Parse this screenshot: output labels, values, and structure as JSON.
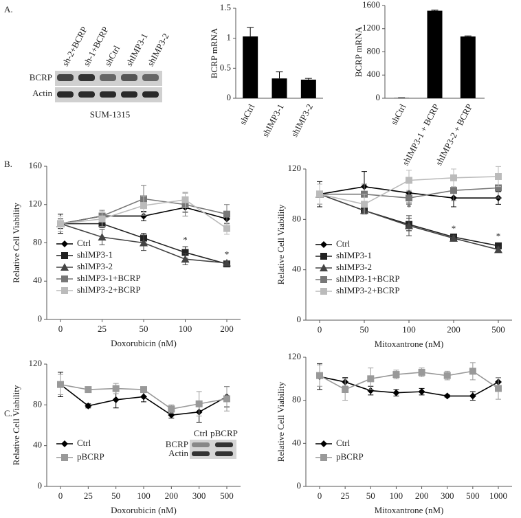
{
  "panel_labels": [
    "A.",
    "B.",
    "C."
  ],
  "blot_a": {
    "lanes": [
      "sh-2+BCRP",
      "sh-1+BCRP",
      "shCtrl",
      "shIMP3-1",
      "shIMP3-2"
    ],
    "rows": [
      "BCRP",
      "Actin"
    ],
    "cell_line": "SUM-1315"
  },
  "blot_c": {
    "lanes": [
      "Ctrl",
      "pBCRP"
    ],
    "rows": [
      "BCRP",
      "Actin"
    ]
  },
  "chart_data": [
    {
      "type": "bar",
      "ylabel": "BCRP mRNA",
      "categories": [
        "shCtrl",
        "shIMP3-1",
        "shIMP3-2"
      ],
      "values": [
        1.03,
        0.33,
        0.31
      ],
      "errors": [
        0.15,
        0.11,
        0.02
      ],
      "color": "#000000",
      "ylim": [
        0,
        1.5
      ],
      "yticks": [
        0,
        0.5,
        1,
        1.5
      ]
    },
    {
      "type": "bar",
      "ylabel": "BCRP mRNA",
      "categories": [
        "shCtrl",
        "shIMP3-1 + BCRP",
        "shIMP3-2 + BCRP"
      ],
      "values": [
        5,
        1510,
        1065
      ],
      "errors": [
        3,
        10,
        10
      ],
      "color": "#000000",
      "ylim": [
        0,
        1600
      ],
      "yticks": [
        0,
        400,
        800,
        1200,
        1600
      ]
    },
    {
      "type": "line",
      "ylabel": "Relative Cell Viability",
      "xlabel": "Doxorubicin (nM)",
      "categories": [
        "0",
        "25",
        "50",
        "100",
        "200"
      ],
      "ylim": [
        0,
        160
      ],
      "yticks": [
        0,
        40,
        80,
        120,
        160
      ],
      "legend": "lower left",
      "series": [
        {
          "name": "Ctrl",
          "color": "#000000",
          "marker": "diamond",
          "values": [
            100,
            108,
            108,
            117,
            105
          ],
          "errors": [
            10,
            5,
            5,
            5,
            5
          ]
        },
        {
          "name": "shIMP3-1",
          "color": "#222222",
          "marker": "square",
          "values": [
            100,
            100,
            85,
            70,
            58
          ],
          "errors": [
            5,
            4,
            5,
            6,
            2
          ]
        },
        {
          "name": "shIMP3-2",
          "color": "#444444",
          "marker": "triangle",
          "values": [
            100,
            86,
            80,
            63,
            59
          ],
          "errors": [
            5,
            8,
            8,
            6,
            2
          ]
        },
        {
          "name": "shIMP3-1+BCRP",
          "color": "#777777",
          "marker": "square",
          "values": [
            100,
            108,
            126,
            120,
            110
          ],
          "errors": [
            8,
            6,
            14,
            12,
            10
          ]
        },
        {
          "name": "shIMP3-2+BCRP",
          "color": "#bbbbbb",
          "marker": "square",
          "values": [
            100,
            105,
            119,
            125,
            95
          ],
          "errors": [
            8,
            8,
            10,
            8,
            6
          ]
        }
      ],
      "annotations": [
        {
          "text": "*",
          "x": "100",
          "y": 82
        },
        {
          "text": "*",
          "x": "200",
          "y": 67
        }
      ]
    },
    {
      "type": "line",
      "ylabel": "Relative Cell Viability",
      "xlabel": "Mitoxantrone (nM)",
      "categories": [
        "0",
        "50",
        "100",
        "200",
        "500"
      ],
      "ylim": [
        0,
        120
      ],
      "yticks": [
        0,
        40,
        80,
        120
      ],
      "legend": "lower left",
      "series": [
        {
          "name": "Ctrl",
          "color": "#000000",
          "marker": "diamond",
          "values": [
            100,
            106,
            101,
            97,
            97
          ],
          "errors": [
            10,
            12,
            8,
            7,
            5
          ]
        },
        {
          "name": "shIMP3-1",
          "color": "#222222",
          "marker": "square",
          "values": [
            100,
            87,
            76,
            66,
            59
          ],
          "errors": [
            8,
            2,
            5,
            2,
            2
          ]
        },
        {
          "name": "shIMP3-2",
          "color": "#444444",
          "marker": "triangle",
          "values": [
            100,
            87,
            75,
            65,
            56
          ],
          "errors": [
            8,
            2,
            8,
            2,
            2
          ]
        },
        {
          "name": "shIMP3-1+BCRP",
          "color": "#777777",
          "marker": "square",
          "values": [
            100,
            100,
            97,
            103,
            105
          ],
          "errors": [
            8,
            8,
            5,
            8,
            8
          ]
        },
        {
          "name": "shIMP3-2+BCRP",
          "color": "#bbbbbb",
          "marker": "square",
          "values": [
            100,
            92,
            111,
            113,
            114
          ],
          "errors": [
            8,
            8,
            8,
            7,
            8
          ]
        }
      ],
      "annotations": [
        {
          "text": "*",
          "x": "100",
          "y": 89
        },
        {
          "text": "*",
          "x": "200",
          "y": 72
        },
        {
          "text": "*",
          "x": "500",
          "y": 66
        }
      ]
    },
    {
      "type": "line",
      "ylabel": "Relative Cell Viability",
      "xlabel": "Doxorubicin (nM)",
      "categories": [
        "0",
        "25",
        "50",
        "100",
        "200",
        "300",
        "500"
      ],
      "ylim": [
        0,
        120
      ],
      "yticks": [
        0,
        40,
        80,
        120
      ],
      "legend": "lower left",
      "series": [
        {
          "name": "Ctrl",
          "color": "#000000",
          "marker": "diamond",
          "values": [
            100,
            79,
            85,
            88,
            70,
            73,
            88
          ],
          "errors": [
            12,
            2,
            8,
            5,
            3,
            10,
            10
          ]
        },
        {
          "name": "pBCRP",
          "color": "#999999",
          "marker": "square",
          "values": [
            100,
            95,
            96,
            95,
            76,
            81,
            86
          ],
          "errors": [
            10,
            2,
            5,
            2,
            4,
            12,
            12
          ]
        }
      ]
    },
    {
      "type": "line",
      "ylabel": "Relative Cell Viability",
      "xlabel": "Mitoxantrone (nM)",
      "categories": [
        "0",
        "25",
        "50",
        "100",
        "200",
        "300",
        "500",
        "1000"
      ],
      "ylim": [
        0,
        120
      ],
      "yticks": [
        0,
        40,
        80,
        120
      ],
      "legend": "lower left",
      "series": [
        {
          "name": "Ctrl",
          "color": "#000000",
          "marker": "diamond",
          "values": [
            102,
            97,
            89,
            87,
            88,
            84,
            84,
            97
          ],
          "errors": [
            12,
            4,
            4,
            3,
            3,
            1,
            4,
            4
          ]
        },
        {
          "name": "pBCRP",
          "color": "#999999",
          "marker": "square",
          "values": [
            103,
            90,
            100,
            104,
            106,
            103,
            107,
            91
          ],
          "errors": [
            10,
            10,
            10,
            4,
            4,
            4,
            8,
            10
          ]
        }
      ]
    }
  ]
}
